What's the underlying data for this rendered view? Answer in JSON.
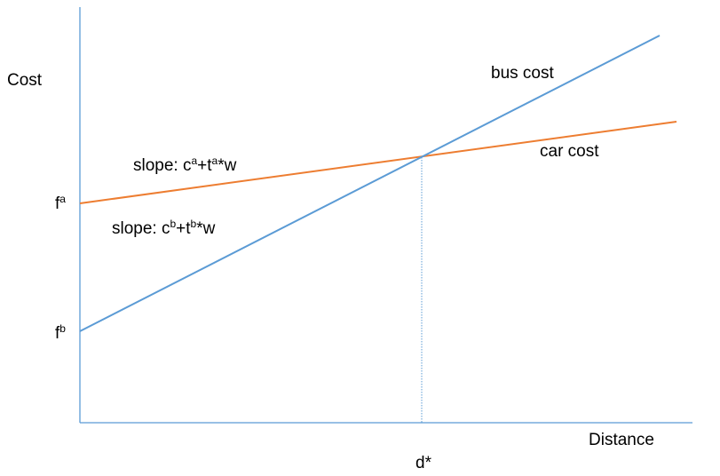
{
  "colors": {
    "axis": "#5b9bd5",
    "car_line": "#ed7d31",
    "bus_line": "#5b9bd5",
    "guide": "#5b9bd5",
    "text": "#000000"
  },
  "axes": {
    "y_label": "Cost",
    "x_label": "Distance"
  },
  "lines": {
    "bus": {
      "label": "bus cost",
      "slope": {
        "prefix": "slope: c",
        "sup1": "b",
        "mid": "+t",
        "sup2": "b",
        "suffix": "*w"
      }
    },
    "car": {
      "label": "car cost",
      "slope": {
        "prefix": "slope: c",
        "sup1": "a",
        "mid": "+t",
        "sup2": "a",
        "suffix": "*w"
      }
    }
  },
  "intercepts": {
    "car": {
      "base": "f",
      "sup": "a"
    },
    "bus": {
      "base": "f",
      "sup": "b"
    }
  },
  "breakeven": {
    "label": "d*"
  }
}
